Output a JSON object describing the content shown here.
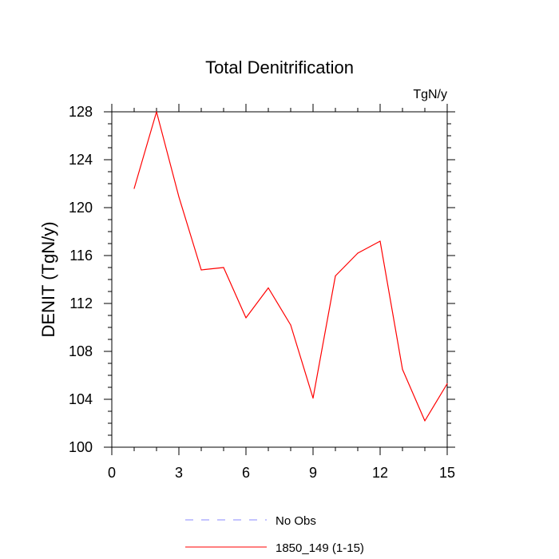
{
  "chart_data": {
    "type": "line",
    "title": "Total Denitrification",
    "units": "TgN/y",
    "ylabel": "DENIT  (TgN/y)",
    "xlabel": "",
    "xlim": [
      0,
      15
    ],
    "ylim": [
      100,
      128
    ],
    "xticks": [
      0,
      3,
      6,
      9,
      12,
      15
    ],
    "yticks": [
      100,
      104,
      108,
      112,
      116,
      120,
      124,
      128
    ],
    "grid": false,
    "legend_position": "bottom-center",
    "series": [
      {
        "name": "1850_149 (1-15)",
        "color": "#ff0000",
        "style": "solid",
        "x": [
          1,
          2,
          3,
          4,
          5,
          6,
          7,
          8,
          9,
          10,
          11,
          12,
          13,
          14,
          15
        ],
        "values": [
          121.6,
          128.0,
          120.9,
          114.8,
          115.0,
          110.8,
          113.3,
          110.2,
          104.1,
          114.3,
          116.2,
          117.2,
          106.5,
          102.2,
          105.3
        ]
      }
    ],
    "legend": [
      {
        "label": "No Obs",
        "color": "#8a8aff",
        "style": "dashed"
      },
      {
        "label": "1850_149 (1-15)",
        "color": "#ff0000",
        "style": "solid"
      }
    ]
  }
}
